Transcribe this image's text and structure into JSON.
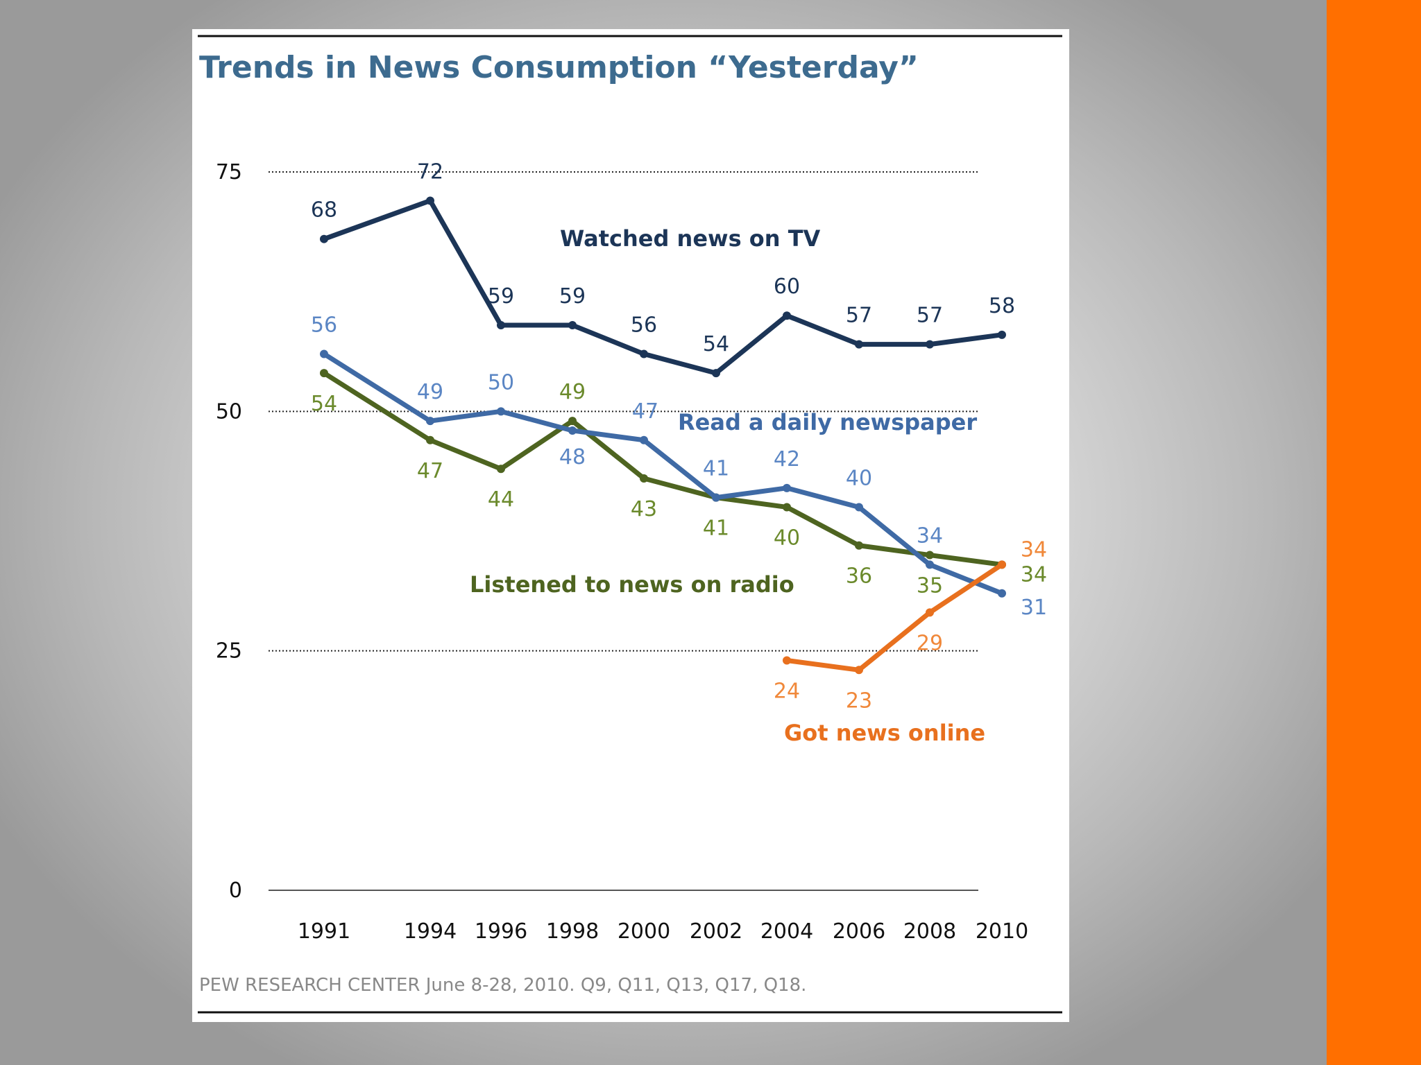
{
  "chart_data": {
    "type": "line",
    "title": "Trends in News Consumption “Yesterday”",
    "x": [
      "1991",
      "1994",
      "1996",
      "1998",
      "2000",
      "2002",
      "2004",
      "2006",
      "2008",
      "2010"
    ],
    "ylim": [
      0,
      75
    ],
    "yticks": [
      "0",
      "25",
      "50",
      "75"
    ],
    "grid": true,
    "series": [
      {
        "name": "Watched news on TV",
        "color": "#1c3557",
        "label_color": "#1c3557",
        "x": [
          "1991",
          "1994",
          "1996",
          "1998",
          "2000",
          "2002",
          "2004",
          "2006",
          "2008",
          "2010"
        ],
        "values": [
          68,
          72,
          59,
          59,
          56,
          54,
          60,
          57,
          57,
          58
        ]
      },
      {
        "name": "Read a daily newspaper",
        "color": "#3f6aa5",
        "label_color": "#5b86c4",
        "x": [
          "1991",
          "1994",
          "1996",
          "1998",
          "2000",
          "2002",
          "2004",
          "2006",
          "2008",
          "2010"
        ],
        "values": [
          56,
          49,
          50,
          48,
          47,
          41,
          42,
          40,
          34,
          31
        ]
      },
      {
        "name": "Listened to news on radio",
        "color": "#4e6420",
        "label_color": "#6b8a2c",
        "x": [
          "1991",
          "1994",
          "1996",
          "1998",
          "2000",
          "2002",
          "2004",
          "2006",
          "2008",
          "2010"
        ],
        "values": [
          54,
          47,
          44,
          49,
          43,
          41,
          40,
          36,
          35,
          34
        ]
      },
      {
        "name": "Got news online",
        "color": "#e8701e",
        "label_color": "#f0883a",
        "x": [
          "2004",
          "2006",
          "2008",
          "2010"
        ],
        "values": [
          24,
          23,
          29,
          34
        ]
      }
    ],
    "source": "PEW RESEARCH  CENTER June 8-28, 2010. Q9, Q11, Q13, Q17, Q18."
  }
}
